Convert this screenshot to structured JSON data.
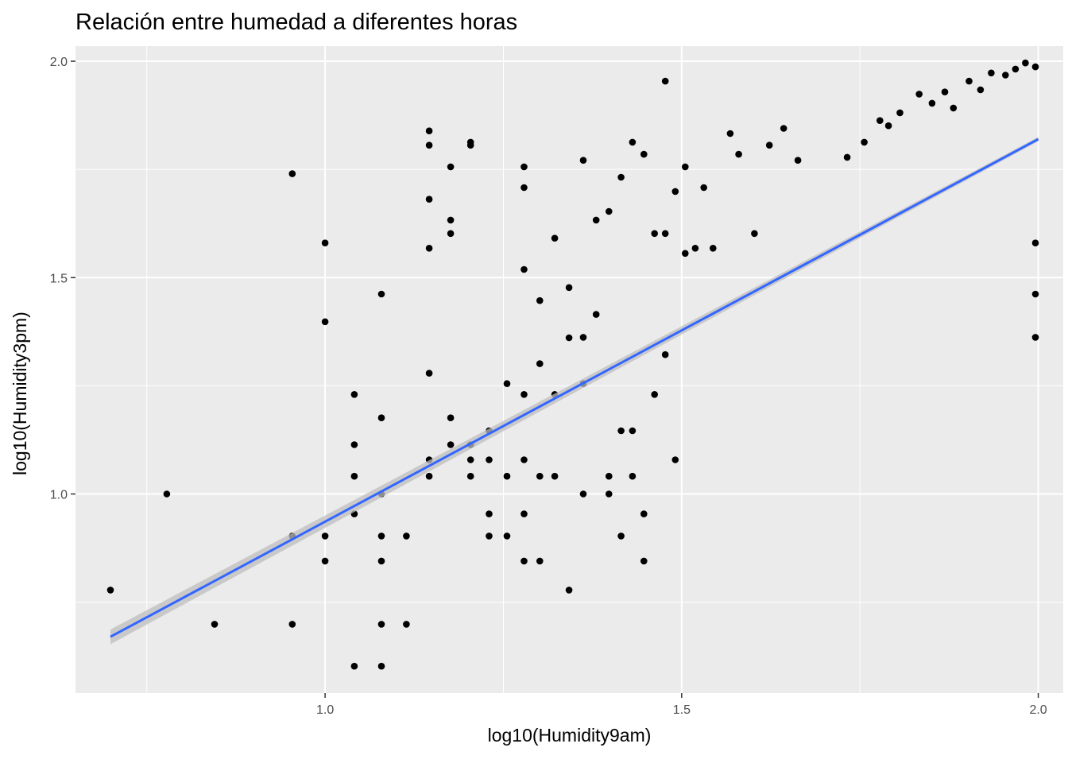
{
  "chart_data": {
    "type": "scatter",
    "title": "Relación entre humedad a diferentes horas",
    "xlabel": "log10(Humidity9am)",
    "ylabel": "log10(Humidity3pm)",
    "xlim": [
      0.65,
      2.035
    ],
    "ylim": [
      0.54,
      2.035
    ],
    "x_ticks": [
      1.0,
      1.5,
      2.0
    ],
    "x_tick_labels": [
      "1.0",
      "1.5",
      "2.0"
    ],
    "y_ticks": [
      1.0,
      1.5,
      2.0
    ],
    "y_tick_labels": [
      "1.0",
      "1.5",
      "2.0"
    ],
    "grid": true,
    "background": "#ebebeb",
    "point_color": "#000000",
    "fit_line": {
      "method": "linear",
      "color": "#3366ff",
      "band_color": "#bdbdbd",
      "x": [
        0.699,
        2.0
      ],
      "y": [
        0.67,
        1.82
      ],
      "se": [
        0.017,
        0.005
      ]
    },
    "points": [
      [
        0.699,
        0.778
      ],
      [
        0.778,
        1.0
      ],
      [
        0.845,
        0.699
      ],
      [
        0.954,
        1.74
      ],
      [
        0.954,
        0.903
      ],
      [
        0.954,
        0.699
      ],
      [
        1.0,
        1.58
      ],
      [
        1.0,
        1.398
      ],
      [
        1.0,
        0.903
      ],
      [
        1.0,
        0.845
      ],
      [
        1.041,
        1.23
      ],
      [
        1.041,
        1.114
      ],
      [
        1.041,
        1.041
      ],
      [
        1.041,
        0.954
      ],
      [
        1.041,
        0.602
      ],
      [
        1.079,
        1.462
      ],
      [
        1.079,
        1.176
      ],
      [
        1.079,
        1.0
      ],
      [
        1.079,
        0.903
      ],
      [
        1.079,
        0.845
      ],
      [
        1.079,
        0.699
      ],
      [
        1.079,
        0.602
      ],
      [
        1.114,
        0.903
      ],
      [
        1.114,
        0.699
      ],
      [
        1.146,
        1.839
      ],
      [
        1.146,
        1.806
      ],
      [
        1.146,
        1.681
      ],
      [
        1.146,
        1.568
      ],
      [
        1.146,
        1.279
      ],
      [
        1.146,
        1.079
      ],
      [
        1.146,
        1.041
      ],
      [
        1.176,
        1.756
      ],
      [
        1.176,
        1.633
      ],
      [
        1.176,
        1.602
      ],
      [
        1.176,
        1.176
      ],
      [
        1.176,
        1.114
      ],
      [
        1.204,
        1.813
      ],
      [
        1.204,
        1.806
      ],
      [
        1.204,
        1.114
      ],
      [
        1.204,
        1.079
      ],
      [
        1.204,
        1.041
      ],
      [
        1.23,
        1.146
      ],
      [
        1.23,
        1.079
      ],
      [
        1.23,
        0.954
      ],
      [
        1.23,
        0.903
      ],
      [
        1.255,
        1.255
      ],
      [
        1.255,
        1.041
      ],
      [
        1.255,
        0.903
      ],
      [
        1.279,
        1.756
      ],
      [
        1.279,
        1.708
      ],
      [
        1.279,
        1.519
      ],
      [
        1.279,
        1.23
      ],
      [
        1.279,
        1.079
      ],
      [
        1.279,
        0.954
      ],
      [
        1.279,
        0.845
      ],
      [
        1.301,
        1.447
      ],
      [
        1.301,
        1.301
      ],
      [
        1.301,
        1.041
      ],
      [
        1.301,
        0.845
      ],
      [
        1.322,
        1.591
      ],
      [
        1.322,
        1.23
      ],
      [
        1.322,
        1.041
      ],
      [
        1.342,
        1.477
      ],
      [
        1.342,
        1.361
      ],
      [
        1.342,
        0.778
      ],
      [
        1.362,
        1.771
      ],
      [
        1.362,
        1.362
      ],
      [
        1.362,
        1.255
      ],
      [
        1.362,
        1.0
      ],
      [
        1.38,
        1.633
      ],
      [
        1.38,
        1.415
      ],
      [
        1.398,
        1.653
      ],
      [
        1.398,
        1.041
      ],
      [
        1.398,
        1.0
      ],
      [
        1.415,
        1.732
      ],
      [
        1.415,
        1.146
      ],
      [
        1.415,
        0.903
      ],
      [
        1.431,
        1.813
      ],
      [
        1.431,
        1.146
      ],
      [
        1.431,
        1.041
      ],
      [
        1.447,
        1.785
      ],
      [
        1.447,
        0.954
      ],
      [
        1.447,
        0.845
      ],
      [
        1.462,
        1.602
      ],
      [
        1.462,
        1.23
      ],
      [
        1.477,
        1.954
      ],
      [
        1.477,
        1.602
      ],
      [
        1.477,
        1.322
      ],
      [
        1.491,
        1.699
      ],
      [
        1.491,
        1.079
      ],
      [
        1.505,
        1.756
      ],
      [
        1.505,
        1.556
      ],
      [
        1.519,
        1.568
      ],
      [
        1.531,
        1.708
      ],
      [
        1.544,
        1.568
      ],
      [
        1.568,
        1.833
      ],
      [
        1.58,
        1.785
      ],
      [
        1.602,
        1.602
      ],
      [
        1.623,
        1.806
      ],
      [
        1.643,
        1.845
      ],
      [
        1.663,
        1.771
      ],
      [
        1.732,
        1.778
      ],
      [
        1.756,
        1.813
      ],
      [
        1.778,
        1.863
      ],
      [
        1.79,
        1.851
      ],
      [
        1.806,
        1.881
      ],
      [
        1.833,
        1.924
      ],
      [
        1.851,
        1.903
      ],
      [
        1.869,
        1.929
      ],
      [
        1.881,
        1.892
      ],
      [
        1.903,
        1.954
      ],
      [
        1.919,
        1.934
      ],
      [
        1.934,
        1.973
      ],
      [
        1.954,
        1.968
      ],
      [
        1.968,
        1.982
      ],
      [
        1.982,
        1.996
      ],
      [
        1.996,
        1.987
      ],
      [
        1.996,
        1.362
      ],
      [
        1.996,
        1.462
      ],
      [
        1.996,
        1.58
      ]
    ]
  }
}
